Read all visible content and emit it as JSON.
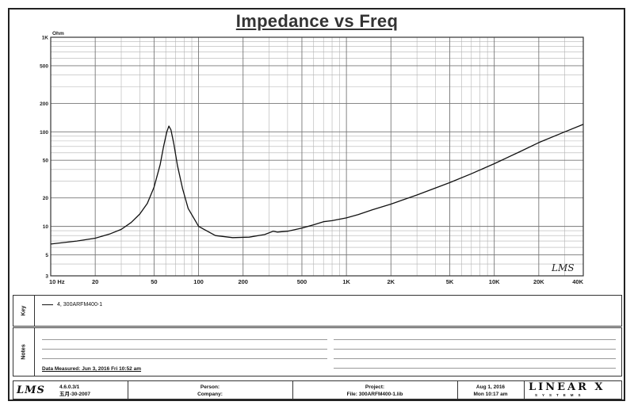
{
  "title": "Impedance vs Freq",
  "chart_data": {
    "type": "line",
    "title": "Impedance vs Freq",
    "y_unit": "Ohm",
    "x_scale": "log",
    "y_scale": "log",
    "xlim": [
      10,
      40000
    ],
    "ylim": [
      3,
      1000
    ],
    "x_ticks": [
      {
        "value": 10,
        "label": "10  Hz"
      },
      {
        "value": 20,
        "label": "20"
      },
      {
        "value": 50,
        "label": "50"
      },
      {
        "value": 100,
        "label": "100"
      },
      {
        "value": 200,
        "label": "200"
      },
      {
        "value": 500,
        "label": "500"
      },
      {
        "value": 1000,
        "label": "1K"
      },
      {
        "value": 2000,
        "label": "2K"
      },
      {
        "value": 5000,
        "label": "5K"
      },
      {
        "value": 10000,
        "label": "10K"
      },
      {
        "value": 20000,
        "label": "20K"
      },
      {
        "value": 40000,
        "label": "40K"
      }
    ],
    "y_ticks": [
      {
        "value": 1000,
        "label": "1K"
      },
      {
        "value": 500,
        "label": "500"
      },
      {
        "value": 200,
        "label": "200"
      },
      {
        "value": 100,
        "label": "100"
      },
      {
        "value": 50,
        "label": "50"
      },
      {
        "value": 20,
        "label": "20"
      },
      {
        "value": 10,
        "label": "10"
      },
      {
        "value": 5,
        "label": "5"
      },
      {
        "value": 3,
        "label": "3"
      }
    ],
    "grid": true,
    "series": [
      {
        "name": "4, 300ARFM400-1",
        "x": [
          10,
          15,
          20,
          25,
          30,
          35,
          40,
          45,
          50,
          55,
          58,
          61,
          63,
          65,
          68,
          72,
          78,
          85,
          100,
          130,
          170,
          220,
          280,
          320,
          340,
          400,
          500,
          600,
          700,
          800,
          1000,
          1200,
          1500,
          2000,
          3000,
          5000,
          7000,
          10000,
          15000,
          20000,
          30000,
          40000
        ],
        "y": [
          6.5,
          7.0,
          7.5,
          8.3,
          9.3,
          11.0,
          13.5,
          17.5,
          26,
          45,
          70,
          100,
          115,
          105,
          75,
          44,
          25,
          15.5,
          10.0,
          8.0,
          7.6,
          7.7,
          8.2,
          8.9,
          8.7,
          8.9,
          9.6,
          10.4,
          11.2,
          11.5,
          12.3,
          13.3,
          15.0,
          17.2,
          21.5,
          29,
          36,
          46,
          62,
          77,
          100,
          120
        ]
      }
    ]
  },
  "legend": {
    "tab_label": "Key",
    "entry": "4, 300ARFM400-1"
  },
  "notes": {
    "tab_label": "Notes",
    "measured": "Data Measured: Jun  3, 2016  Fri 10:52 am"
  },
  "watermark": "LMS",
  "footer": {
    "logo": "LMS",
    "version_line1": "4.6.0.3/1",
    "version_line2": "五月-30-2007",
    "person_label": "Person:",
    "company_label": "Company:",
    "project_label": "Project:",
    "file_label": "File: 300ARFM400-1.lib",
    "date_line1": "Aug  1, 2016",
    "date_line2": "Mon 10:17 am",
    "brand_main": "LINEAR X",
    "brand_sub": "SYSTEMS"
  }
}
